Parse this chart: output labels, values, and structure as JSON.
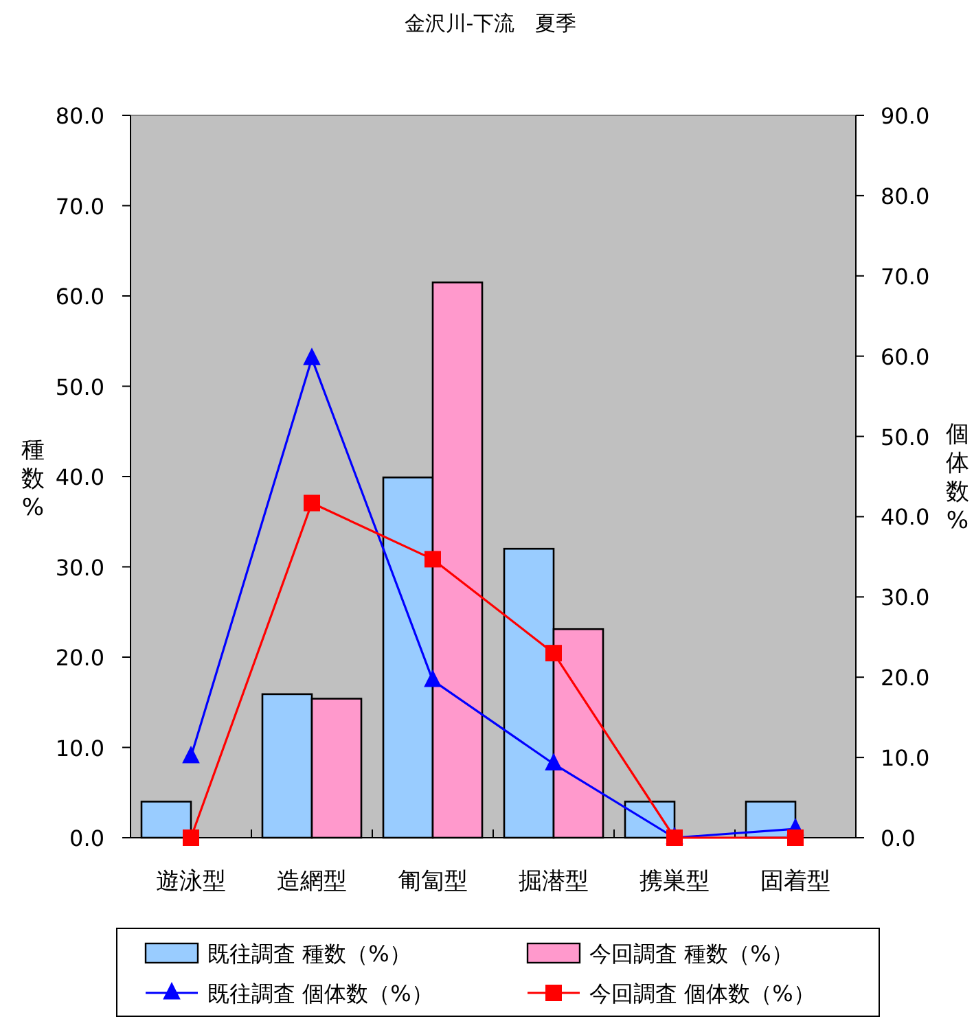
{
  "chart_data": {
    "type": "bar",
    "title": "金沢川-下流　夏季",
    "categories": [
      "遊泳型",
      "造網型",
      "匍匐型",
      "掘潜型",
      "携巣型",
      "固着型"
    ],
    "ylabel": "種数%",
    "y2label": "個体数%",
    "ylim": [
      0,
      80
    ],
    "yticks": [
      {
        "value": 0,
        "label": "0.0"
      },
      {
        "value": 10,
        "label": "10.0"
      },
      {
        "value": 20,
        "label": "20.0"
      },
      {
        "value": 30,
        "label": "30.0"
      },
      {
        "value": 40,
        "label": "40.0"
      },
      {
        "value": 50,
        "label": "50.0"
      },
      {
        "value": 60,
        "label": "60.0"
      },
      {
        "value": 70,
        "label": "70.0"
      },
      {
        "value": 80,
        "label": "80.0"
      }
    ],
    "y2lim": [
      0,
      90
    ],
    "y2ticks": [
      {
        "value": 0,
        "label": "0.0"
      },
      {
        "value": 10,
        "label": "10.0"
      },
      {
        "value": 20,
        "label": "20.0"
      },
      {
        "value": 30,
        "label": "30.0"
      },
      {
        "value": 40,
        "label": "40.0"
      },
      {
        "value": 50,
        "label": "50.0"
      },
      {
        "value": 60,
        "label": "60.0"
      },
      {
        "value": 70,
        "label": "70.0"
      },
      {
        "value": 80,
        "label": "80.0"
      },
      {
        "value": 90,
        "label": "90.0"
      }
    ],
    "legend": "bottom",
    "series": [
      {
        "name": "既往調査 種数（%）",
        "color": "#99ccff",
        "values": [
          4.0,
          15.9,
          39.9,
          32.0,
          4.0,
          4.0
        ]
      },
      {
        "name": "今回調査 種数（%）",
        "color": "#ff99cc",
        "values": [
          0,
          15.4,
          61.5,
          23.1,
          0,
          0
        ]
      },
      {
        "name": "既往調査 個体数（%）",
        "type": "line",
        "axis": "y2",
        "marker": "triangle",
        "color": "#0000ff",
        "values": [
          10.1,
          59.7,
          19.6,
          9.2,
          0,
          1.1
        ]
      },
      {
        "name": "今回調査 個体数（%）",
        "type": "line",
        "axis": "y2",
        "marker": "square",
        "color": "#ff0000",
        "values": [
          0,
          41.7,
          34.7,
          23.0,
          0,
          0
        ]
      }
    ]
  }
}
